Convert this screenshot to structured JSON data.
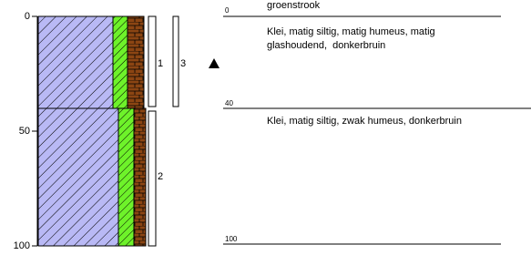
{
  "depth_axis": {
    "ticks": [
      "0",
      "50",
      "100"
    ]
  },
  "intervals": [
    {
      "label": "1"
    },
    {
      "label": "2"
    },
    {
      "label": "3"
    }
  ],
  "description": {
    "boundaries": [
      "0",
      "40",
      "100"
    ],
    "surface": "groenstrook",
    "layers": [
      {
        "lines": [
          "Klei, matig siltig, matig humeus, matig",
          "glashoudend,  donkerbruin"
        ]
      },
      {
        "lines": [
          "Klei, matig siltig, zwak humeus, donkerbruin"
        ]
      }
    ]
  }
}
